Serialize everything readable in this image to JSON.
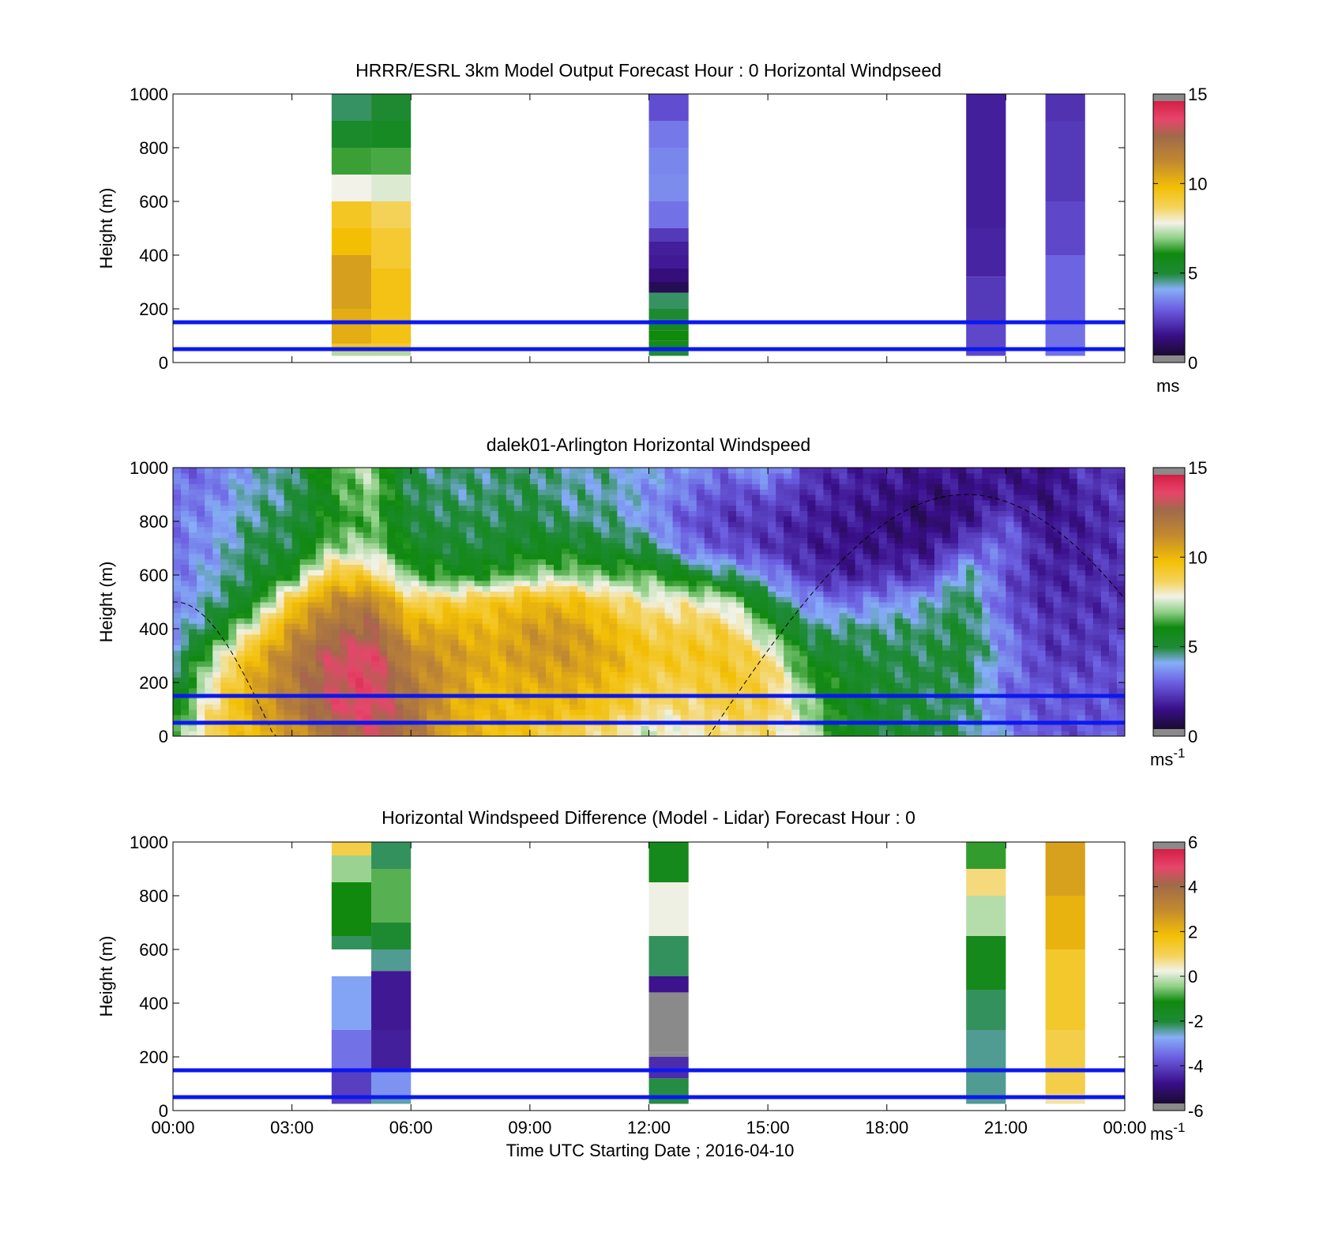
{
  "chart_data": [
    {
      "type": "heatmap",
      "title": "HRRR/ESRL 3km Model Output   Forecast Hour : 0 Horizontal Windpseed",
      "ylabel": "Height (m)",
      "ylim": [
        0,
        1000
      ],
      "yticks": [
        "0",
        "200",
        "400",
        "600",
        "800",
        "1000"
      ],
      "xlim": [
        0,
        24
      ],
      "x_axis_labels_shown": false,
      "colorbar": {
        "min": 0,
        "max": 15,
        "ticks": [
          "0",
          "5",
          "10",
          "15"
        ],
        "unit": "ms",
        "unit_sup": ""
      },
      "reference_lines_m": [
        50,
        150
      ],
      "columns": [
        {
          "t": 4.5,
          "bins": [
            [
              25,
              40,
              7.2
            ],
            [
              40,
              70,
              9.5
            ],
            [
              70,
              200,
              10.4
            ],
            [
              200,
              400,
              10.8
            ],
            [
              400,
              500,
              9.9
            ],
            [
              500,
              600,
              9.5
            ],
            [
              600,
              700,
              7.8
            ],
            [
              700,
              800,
              6.3
            ],
            [
              800,
              900,
              5.2
            ],
            [
              900,
              1000,
              4.6
            ]
          ]
        },
        {
          "t": 5.5,
          "bins": [
            [
              25,
              40,
              7.2
            ],
            [
              40,
              70,
              9.4
            ],
            [
              70,
              350,
              9.7
            ],
            [
              350,
              500,
              9.3
            ],
            [
              500,
              600,
              8.8
            ],
            [
              600,
              700,
              7.6
            ],
            [
              700,
              800,
              6.4
            ],
            [
              800,
              900,
              5.4
            ],
            [
              900,
              1000,
              5.0
            ]
          ]
        },
        {
          "t": 12.5,
          "bins": [
            [
              25,
              45,
              4.8
            ],
            [
              45,
              80,
              5.6
            ],
            [
              80,
              120,
              6.0
            ],
            [
              120,
              160,
              5.5
            ],
            [
              160,
              200,
              5.0
            ],
            [
              200,
              260,
              4.6
            ],
            [
              260,
              300,
              0.5
            ],
            [
              300,
              350,
              1.0
            ],
            [
              350,
              400,
              1.4
            ],
            [
              400,
              450,
              1.5
            ],
            [
              450,
              500,
              2.0
            ],
            [
              500,
              600,
              3.0
            ],
            [
              600,
              700,
              3.4
            ],
            [
              700,
              800,
              3.3
            ],
            [
              800,
              900,
              3.1
            ],
            [
              900,
              1000,
              2.4
            ]
          ]
        },
        {
          "t": 20.5,
          "bins": [
            [
              25,
              150,
              2.3
            ],
            [
              150,
              320,
              2.0
            ],
            [
              320,
              500,
              1.6
            ],
            [
              500,
              1000,
              1.5
            ]
          ]
        },
        {
          "t": 22.5,
          "bins": [
            [
              25,
              150,
              3.0
            ],
            [
              150,
              400,
              2.8
            ],
            [
              400,
              600,
              2.3
            ],
            [
              600,
              900,
              2.0
            ],
            [
              900,
              1000,
              1.9
            ]
          ]
        }
      ]
    },
    {
      "type": "heatmap",
      "title": "dalek01-Arlington  Horizontal Windspeed",
      "ylabel": "Height (m)",
      "ylim": [
        0,
        1000
      ],
      "yticks": [
        "0",
        "200",
        "400",
        "600",
        "800",
        "1000"
      ],
      "xlim": [
        0,
        24
      ],
      "x_axis_labels_shown": false,
      "colorbar": {
        "min": 0,
        "max": 15,
        "ticks": [
          "0",
          "5",
          "10",
          "15"
        ],
        "unit": "ms",
        "unit_sup": "-1"
      },
      "reference_lines_m": [
        50,
        150
      ],
      "field_keyframes": {
        "heights_m": [
          25,
          100,
          200,
          300,
          400,
          500,
          600,
          700,
          800,
          900,
          1000
        ],
        "times_h": [
          0,
          1,
          2,
          3,
          4,
          5,
          6,
          7,
          8,
          9,
          10,
          11,
          12,
          13,
          14,
          15,
          16,
          17,
          18,
          19,
          20,
          21,
          22,
          23,
          24
        ],
        "speed_ms": [
          [
            6.0,
            5.5,
            4.5,
            4.0,
            3.5,
            3.0,
            3.0,
            3.0,
            3.2,
            3.0,
            2.8
          ],
          [
            9.0,
            8.5,
            8.0,
            7.0,
            5.0,
            4.5,
            4.0,
            3.6,
            3.5,
            3.2,
            3.0
          ],
          [
            10.0,
            10.5,
            10.5,
            10.0,
            8.0,
            5.5,
            5.0,
            4.8,
            4.5,
            4.2,
            4.0
          ],
          [
            11.0,
            12.0,
            12.0,
            12.0,
            11.0,
            9.5,
            6.0,
            5.0,
            4.8,
            4.5,
            4.5
          ],
          [
            12.5,
            13.5,
            13.5,
            13.5,
            12.5,
            11.5,
            9.5,
            7.0,
            6.0,
            6.0,
            6.5
          ],
          [
            13.5,
            14.0,
            14.0,
            14.0,
            13.0,
            12.0,
            9.0,
            7.2,
            6.5,
            7.0,
            7.2
          ],
          [
            12.5,
            12.5,
            12.0,
            11.5,
            10.5,
            9.0,
            6.5,
            5.5,
            5.0,
            4.8,
            4.5
          ],
          [
            10.5,
            10.5,
            11.0,
            11.0,
            10.5,
            9.0,
            6.0,
            5.0,
            4.8,
            4.5,
            4.5
          ],
          [
            10.0,
            10.0,
            10.0,
            10.5,
            10.0,
            9.5,
            6.0,
            5.0,
            4.8,
            4.5,
            4.5
          ],
          [
            9.5,
            10.0,
            10.5,
            11.0,
            11.0,
            10.0,
            7.0,
            5.5,
            5.0,
            4.8,
            4.6
          ],
          [
            9.0,
            10.0,
            10.5,
            11.0,
            11.0,
            10.0,
            7.0,
            5.5,
            4.5,
            4.2,
            4.2
          ],
          [
            8.5,
            9.5,
            10.0,
            10.5,
            10.0,
            9.0,
            6.5,
            5.0,
            4.5,
            4.3,
            4.2
          ],
          [
            7.5,
            8.5,
            9.0,
            9.5,
            9.0,
            8.0,
            6.5,
            4.8,
            3.5,
            3.5,
            3.8
          ],
          [
            8.0,
            8.5,
            9.0,
            9.5,
            9.0,
            8.0,
            5.5,
            3.0,
            2.5,
            3.0,
            3.5
          ],
          [
            8.5,
            9.0,
            9.5,
            9.5,
            9.0,
            7.5,
            4.5,
            2.5,
            2.0,
            2.3,
            3.0
          ],
          [
            8.5,
            9.0,
            9.0,
            8.5,
            6.5,
            5.0,
            3.5,
            2.0,
            2.0,
            2.5,
            4.0
          ],
          [
            7.5,
            7.0,
            6.5,
            5.5,
            4.5,
            3.5,
            2.0,
            1.5,
            1.5,
            1.8,
            2.0
          ],
          [
            5.5,
            5.5,
            5.5,
            5.0,
            4.5,
            3.0,
            1.5,
            1.2,
            1.3,
            1.5,
            1.6
          ],
          [
            5.0,
            5.0,
            5.0,
            4.8,
            4.5,
            3.5,
            2.0,
            1.2,
            1.0,
            1.2,
            1.5
          ],
          [
            5.0,
            4.8,
            4.8,
            4.8,
            4.5,
            4.0,
            2.0,
            1.2,
            0.8,
            1.0,
            1.2
          ],
          [
            4.5,
            4.5,
            4.8,
            5.0,
            5.0,
            4.8,
            4.5,
            2.5,
            1.2,
            1.0,
            1.5
          ],
          [
            3.5,
            3.0,
            3.0,
            3.5,
            3.0,
            2.5,
            2.5,
            3.0,
            2.5,
            1.5,
            1.2
          ],
          [
            2.5,
            2.5,
            2.5,
            2.0,
            2.0,
            1.8,
            1.5,
            1.5,
            1.2,
            1.0,
            1.0
          ],
          [
            2.5,
            2.5,
            2.5,
            2.0,
            2.0,
            1.8,
            1.8,
            1.5,
            1.5,
            1.8,
            2.0
          ],
          [
            3.0,
            2.5,
            2.5,
            2.5,
            2.0,
            2.0,
            2.0,
            2.0,
            2.0,
            2.0,
            2.0
          ]
        ]
      },
      "sun_curve_note": "dashed elevation curve: height ~500 m at 00:00, 0 m near 02:30, 0 m near 13:35, peak ~900 m near 20:00"
    },
    {
      "type": "heatmap",
      "title": "Horizontal Windspeed Difference (Model - Lidar) Forecast Hour : 0",
      "ylabel": "Height (m)",
      "xlabel": "Time UTC  Starting Date ; 2016-04-10",
      "ylim": [
        0,
        1000
      ],
      "yticks": [
        "0",
        "200",
        "400",
        "600",
        "800",
        "1000"
      ],
      "xlim": [
        0,
        24
      ],
      "xticks": [
        "00:00",
        "03:00",
        "06:00",
        "09:00",
        "12:00",
        "15:00",
        "18:00",
        "21:00",
        "00:00"
      ],
      "colorbar": {
        "min": -6,
        "max": 6,
        "ticks": [
          "-6",
          "-4",
          "-2",
          "0",
          "2",
          "4",
          "6"
        ],
        "unit": "ms",
        "unit_sup": "-1"
      },
      "reference_lines_m": [
        50,
        150
      ],
      "columns": [
        {
          "t": 4.5,
          "bins": [
            [
              25,
              150,
              -4.3
            ],
            [
              150,
              300,
              -3.6
            ],
            [
              300,
              500,
              -3.0
            ],
            [
              500,
              600,
              null
            ],
            [
              600,
              650,
              -2.3
            ],
            [
              650,
              850,
              -1.2
            ],
            [
              850,
              950,
              -0.4
            ],
            [
              950,
              1000,
              1.2
            ]
          ]
        },
        {
          "t": 5.5,
          "bins": [
            [
              25,
              50,
              -2.6
            ],
            [
              50,
              150,
              -3.2
            ],
            [
              150,
              300,
              -4.8
            ],
            [
              300,
              520,
              -4.9
            ],
            [
              520,
              600,
              -2.5
            ],
            [
              600,
              700,
              -2.0
            ],
            [
              700,
              900,
              -0.8
            ],
            [
              900,
              1000,
              -2.3
            ]
          ]
        },
        {
          "t": 12.5,
          "bins": [
            [
              25,
              120,
              -2.2
            ],
            [
              120,
              200,
              -4.6
            ],
            [
              200,
              215,
              -6.5
            ],
            [
              215,
              440,
              -7.0
            ],
            [
              440,
              500,
              -5.0
            ],
            [
              500,
              650,
              -2.3
            ],
            [
              650,
              850,
              0.2
            ],
            [
              850,
              1000,
              -1.5
            ]
          ]
        },
        {
          "t": 20.5,
          "bins": [
            [
              25,
              300,
              -2.5
            ],
            [
              300,
              450,
              -2.3
            ],
            [
              450,
              650,
              -1.5
            ],
            [
              650,
              800,
              -0.2
            ],
            [
              800,
              900,
              0.8
            ],
            [
              900,
              1000,
              -1.0
            ]
          ]
        },
        {
          "t": 22.5,
          "bins": [
            [
              25,
              60,
              0.6
            ],
            [
              60,
              300,
              1.2
            ],
            [
              300,
              600,
              1.5
            ],
            [
              600,
              800,
              2.2
            ],
            [
              800,
              1000,
              2.6
            ]
          ]
        }
      ]
    }
  ]
}
